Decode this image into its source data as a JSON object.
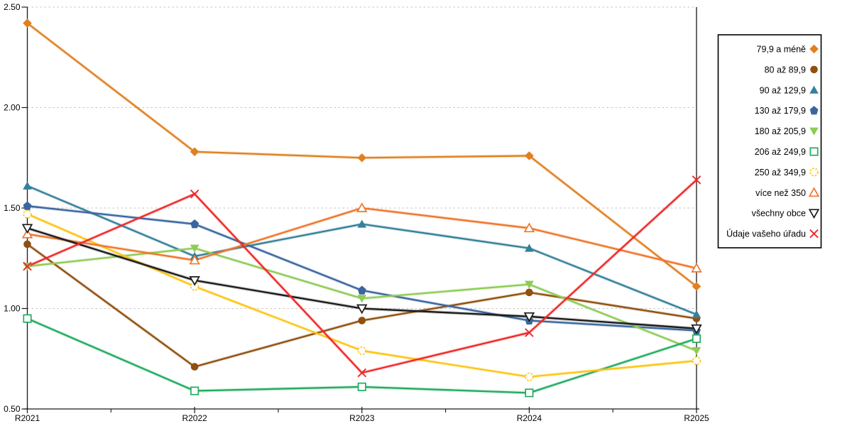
{
  "chart_data": {
    "type": "line",
    "title": "",
    "xlabel": "",
    "ylabel": "",
    "x_categories": [
      "R2021",
      "R2022",
      "R2023",
      "R2024",
      "R2025"
    ],
    "y_tick_labels": [
      "2.50",
      "2.00",
      "1.50",
      "1.00",
      "0.50"
    ],
    "y_tick_values": [
      2.5,
      2.0,
      1.5,
      1.0,
      0.5
    ],
    "ylim": [
      0.5,
      2.5
    ],
    "grid": "horizontal-dotted",
    "legend_position": "right",
    "axis_color": "#1a1a1a",
    "grid_color": "#c3c3c3",
    "series": [
      {
        "name": "79,9 a méně",
        "color": "#e0801f",
        "marker": "diamond",
        "filled": true,
        "values": [
          2.42,
          1.78,
          1.75,
          1.76,
          1.11
        ]
      },
      {
        "name": "80 až 89,9",
        "color": "#90500f",
        "marker": "circle",
        "filled": true,
        "values": [
          1.32,
          0.71,
          0.94,
          1.08,
          0.95
        ]
      },
      {
        "name": "90 až 129,9",
        "color": "#35809b",
        "marker": "triangle-up",
        "filled": true,
        "values": [
          1.61,
          1.26,
          1.42,
          1.3,
          0.97
        ]
      },
      {
        "name": "130 až 179,9",
        "color": "#3a66a0",
        "marker": "pentagon",
        "filled": true,
        "values": [
          1.51,
          1.42,
          1.09,
          0.94,
          0.89
        ]
      },
      {
        "name": "180 až 205,9",
        "color": "#8ecc55",
        "marker": "triangle-down",
        "filled": true,
        "values": [
          1.21,
          1.3,
          1.05,
          1.12,
          0.79
        ]
      },
      {
        "name": "206 až 249,9",
        "color": "#22ac5e",
        "marker": "square",
        "filled": false,
        "values": [
          0.95,
          0.59,
          0.61,
          0.58,
          0.85
        ]
      },
      {
        "name": "250 až 349,9",
        "color": "#fec514",
        "marker": "circle",
        "filled": false,
        "values": [
          1.47,
          1.11,
          0.79,
          0.66,
          0.74
        ]
      },
      {
        "name": "více než 350",
        "color": "#f0762b",
        "marker": "triangle-up",
        "filled": false,
        "values": [
          1.37,
          1.24,
          1.5,
          1.4,
          1.2
        ]
      },
      {
        "name": "všechny obce",
        "color": "#1a1a1a",
        "marker": "triangle-down",
        "filled": false,
        "values": [
          1.4,
          1.14,
          1.0,
          0.96,
          0.9
        ]
      },
      {
        "name": "Údaje vašeho úřadu",
        "color": "#f02828",
        "marker": "x",
        "filled": false,
        "values": [
          1.21,
          1.57,
          0.68,
          0.88,
          1.64
        ]
      }
    ]
  }
}
